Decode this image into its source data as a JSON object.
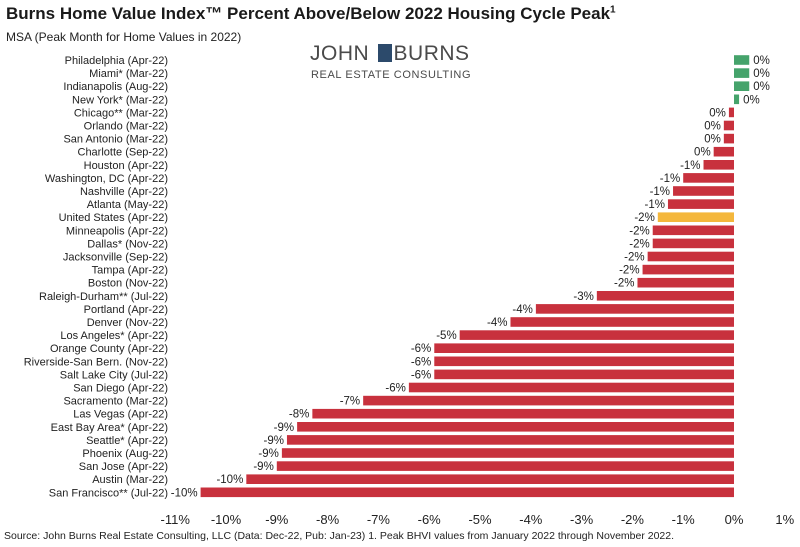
{
  "header": {
    "title": "Burns Home Value Index™ Percent Above/Below 2022 Housing Cycle Peak",
    "title_sup": "1",
    "subtitle": "MSA (Peak Month for Home Values in 2022)"
  },
  "logo": {
    "line1_left": "JOHN",
    "line1_right": "BURNS",
    "line2": "REAL ESTATE CONSULTING"
  },
  "source": "Source: John Burns Real Estate Consulting, LLC (Data: Dec-22, Pub: Jan-23) 1. Peak BHVI values from January 2022 through November 2022.",
  "colors": {
    "positive": "#45a36b",
    "negative": "#c8313d",
    "highlight": "#f4b73c"
  },
  "chart_data": {
    "type": "bar",
    "orientation": "horizontal",
    "xlim": [
      -11,
      1
    ],
    "x_ticks": [
      "-11%",
      "-10%",
      "-9%",
      "-8%",
      "-7%",
      "-6%",
      "-5%",
      "-4%",
      "-3%",
      "-2%",
      "-1%",
      "0%",
      "1%"
    ],
    "highlight_category": "United States (Apr-22)",
    "categories": [
      "Philadelphia (Apr-22)",
      "Miami* (Mar-22)",
      "Indianapolis (Aug-22)",
      "New York* (Mar-22)",
      "Chicago** (Mar-22)",
      "Orlando (Mar-22)",
      "San Antonio (Mar-22)",
      "Charlotte (Sep-22)",
      "Houston (Apr-22)",
      "Washington, DC (Apr-22)",
      "Nashville (Apr-22)",
      "Atlanta (May-22)",
      "United States (Apr-22)",
      "Minneapolis (Apr-22)",
      "Dallas* (Nov-22)",
      "Jacksonville (Sep-22)",
      "Tampa (Apr-22)",
      "Boston (Nov-22)",
      "Raleigh-Durham** (Jul-22)",
      "Portland (Apr-22)",
      "Denver (Nov-22)",
      "Los Angeles* (Apr-22)",
      "Orange County (Apr-22)",
      "Riverside-San Bern. (Nov-22)",
      "Salt Lake City (Jul-22)",
      "San Diego (Apr-22)",
      "Sacramento (Mar-22)",
      "Las Vegas (Apr-22)",
      "East Bay Area* (Apr-22)",
      "Seattle* (Apr-22)",
      "Phoenix (Aug-22)",
      "San Jose (Apr-22)",
      "Austin (Mar-22)",
      "San Francisco** (Jul-22)"
    ],
    "values": [
      0.3,
      0.3,
      0.3,
      0.1,
      -0.1,
      -0.2,
      -0.2,
      -0.4,
      -0.6,
      -1.0,
      -1.2,
      -1.3,
      -1.5,
      -1.6,
      -1.6,
      -1.7,
      -1.8,
      -1.9,
      -2.7,
      -3.9,
      -4.4,
      -5.4,
      -5.9,
      -5.9,
      -5.9,
      -6.4,
      -7.3,
      -8.3,
      -8.6,
      -8.8,
      -8.9,
      -9.0,
      -9.6,
      -10.5
    ],
    "labels": [
      "0%",
      "0%",
      "0%",
      "0%",
      "0%",
      "0%",
      "0%",
      "0%",
      "-1%",
      "-1%",
      "-1%",
      "-1%",
      "-2%",
      "-2%",
      "-2%",
      "-2%",
      "-2%",
      "-2%",
      "-3%",
      "-4%",
      "-4%",
      "-5%",
      "-6%",
      "-6%",
      "-6%",
      "-6%",
      "-7%",
      "-8%",
      "-9%",
      "-9%",
      "-9%",
      "-9%",
      "-10%",
      "-10%"
    ]
  }
}
